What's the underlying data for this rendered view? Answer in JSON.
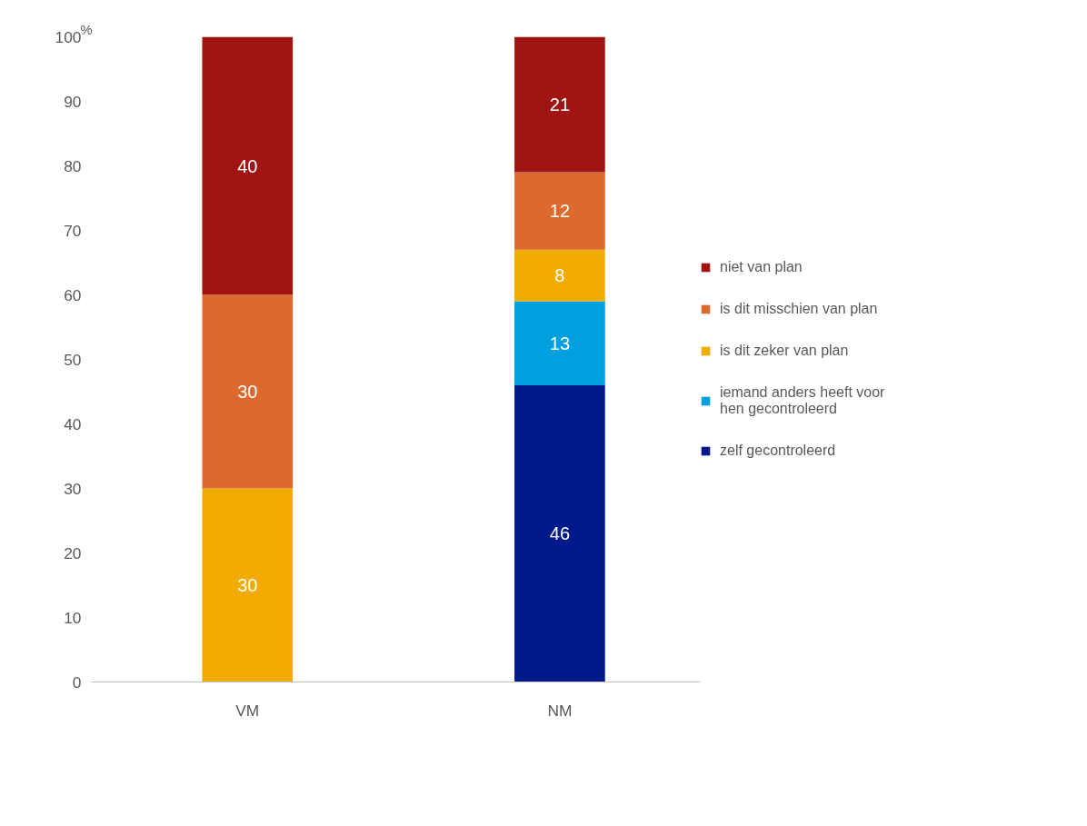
{
  "chart_data": {
    "type": "bar",
    "stacked": true,
    "categories": [
      "VM",
      "NM"
    ],
    "ylabel": "%",
    "ylim": [
      0,
      100
    ],
    "yticks": [
      0,
      10,
      20,
      30,
      40,
      50,
      60,
      70,
      80,
      90,
      100
    ],
    "grid": false,
    "legend": "right",
    "data_labels": true,
    "series": [
      {
        "name": "zelf gecontroleerd",
        "color": "#001a8c",
        "values": [
          null,
          46
        ]
      },
      {
        "name": "iemand anders heeft voor hen gecontroleerd",
        "color": "#00a0e0",
        "values": [
          null,
          13
        ]
      },
      {
        "name": "is dit zeker van plan",
        "color": "#f2ab00",
        "values": [
          30,
          8
        ]
      },
      {
        "name": "is dit misschien van plan",
        "color": "#dc6a2e",
        "values": [
          30,
          12
        ]
      },
      {
        "name": "niet van plan",
        "color": "#a01414",
        "values": [
          40,
          21
        ]
      }
    ]
  }
}
